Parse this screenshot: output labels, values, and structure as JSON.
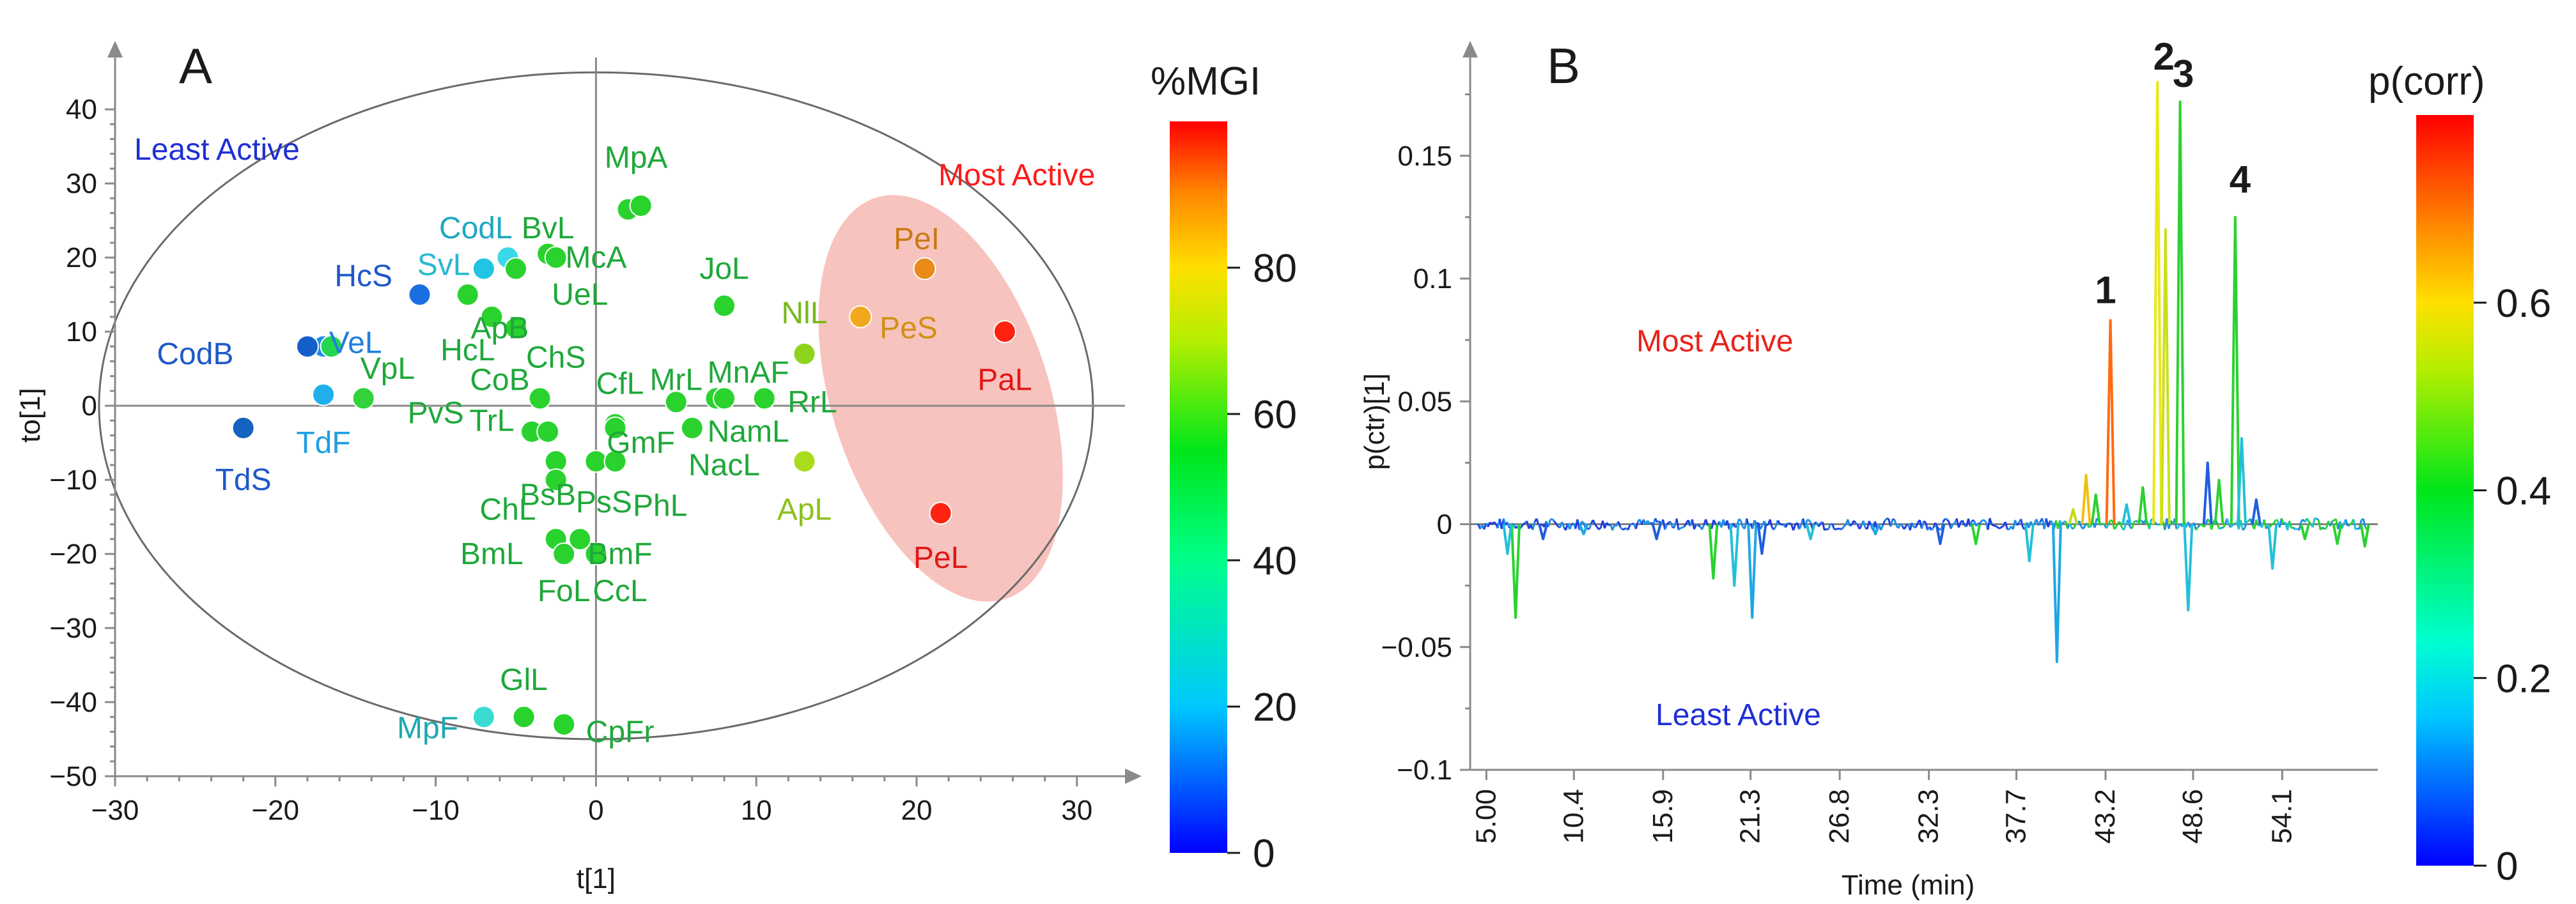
{
  "chart_data": [
    {
      "type": "scatter",
      "panel_label": "A",
      "xlabel": "t[1]",
      "ylabel": "to[1]",
      "xlim": [
        -30,
        33
      ],
      "ylim": [
        -50,
        47
      ],
      "xticks": [
        -30,
        -20,
        -10,
        0,
        10,
        20,
        30
      ],
      "yticks": [
        -50,
        -40,
        -30,
        -20,
        -10,
        0,
        10,
        20,
        30,
        40
      ],
      "xtick_labels": [
        "−30",
        "−20",
        "−10",
        "0",
        "10",
        "20",
        "30"
      ],
      "ytick_labels": [
        "−50",
        "−40",
        "−30",
        "−20",
        "−10",
        "0",
        "10",
        "20",
        "30",
        "40"
      ],
      "annotations": {
        "least_active": "Least Active",
        "most_active": "Most Active"
      },
      "annotation_colors": {
        "least_active": "#1f2fd6",
        "most_active": "#ff1a1a"
      },
      "hotelling_ellipse": {
        "center": [
          0,
          0
        ],
        "rx": 31,
        "ry": 45
      },
      "highlight_region_color": "#f6b8b3",
      "colorbar": {
        "title": "%MGI",
        "min": 0,
        "max": 100,
        "ticks": [
          0,
          20,
          40,
          60,
          80
        ],
        "tick_labels": [
          "0",
          "20",
          "40",
          "60",
          "80"
        ]
      },
      "points": [
        {
          "label": "HcS",
          "x": -11,
          "y": 15,
          "color": "#1a6fe0"
        },
        {
          "label": "VeL",
          "x": -17,
          "y": 8,
          "color": "#1e8ee6"
        },
        {
          "label": "CodB",
          "x": -18,
          "y": 8,
          "color": "#1560c8"
        },
        {
          "label": "VpL",
          "x": -16.5,
          "y": 8,
          "color": "#25d650"
        },
        {
          "label": "TdF",
          "x": -17,
          "y": 1.5,
          "color": "#1fb0ec"
        },
        {
          "label": "TdS",
          "x": -22,
          "y": -3,
          "color": "#1562c0"
        },
        {
          "label": "PvS",
          "x": -14.5,
          "y": 1,
          "color": "#32d23a"
        },
        {
          "label": "CodL",
          "x": -7,
          "y": 18.5,
          "color": "#22c4e4"
        },
        {
          "label": "SvL",
          "x": -5.5,
          "y": 20,
          "color": "#3ad8e8"
        },
        {
          "label": "BvL",
          "x": -3,
          "y": 20.5,
          "color": "#2ad22e"
        },
        {
          "label": "McA",
          "x": -2.5,
          "y": 20,
          "color": "#2ad22e"
        },
        {
          "label": "UeL",
          "x": -5,
          "y": 18.5,
          "color": "#2ad22e"
        },
        {
          "label": "ApB",
          "x": -8,
          "y": 15,
          "color": "#2ad22e"
        },
        {
          "label": "HcL",
          "x": -6.5,
          "y": 12,
          "color": "#2ad22e"
        },
        {
          "label": "ChS",
          "x": -5,
          "y": 10.5,
          "color": "#2ad22e"
        },
        {
          "label": "MpA",
          "x": 2,
          "y": 26.5,
          "color": "#2ad22e"
        },
        {
          "label": "MpA2",
          "x": 2.8,
          "y": 27,
          "color": "#2ad22e"
        },
        {
          "label": "JoL",
          "x": 8,
          "y": 13.5,
          "color": "#2ad22e"
        },
        {
          "label": "NlL",
          "x": 13,
          "y": 7,
          "color": "#8ed41c"
        },
        {
          "label": "PeS",
          "x": 16.5,
          "y": 12,
          "color": "#f2a81c"
        },
        {
          "label": "PeI",
          "x": 20.5,
          "y": 18.5,
          "color": "#ea8a1a"
        },
        {
          "label": "PaL",
          "x": 25.5,
          "y": 10,
          "color": "#ff2210"
        },
        {
          "label": "PeL",
          "x": 21.5,
          "y": -14.5,
          "color": "#ff2210"
        },
        {
          "label": "CoB",
          "x": -3.5,
          "y": 1,
          "color": "#2ad22e"
        },
        {
          "label": "TrL",
          "x": -4,
          "y": -3.5,
          "color": "#2ad22e"
        },
        {
          "label": "TrL2",
          "x": -3,
          "y": -3.5,
          "color": "#2ad22e"
        },
        {
          "label": "CfL",
          "x": 1.2,
          "y": -2.5,
          "color": "#2ad22e"
        },
        {
          "label": "MrL",
          "x": 5,
          "y": 0.5,
          "color": "#2ad22e"
        },
        {
          "label": "MnAF",
          "x": 7.5,
          "y": 1,
          "color": "#2ad22e"
        },
        {
          "label": "MnAF2",
          "x": 8,
          "y": 1,
          "color": "#2ad22e"
        },
        {
          "label": "RrL",
          "x": 10.5,
          "y": 1,
          "color": "#2ad22e"
        },
        {
          "label": "ApL",
          "x": 13,
          "y": -7.5,
          "color": "#aadc1e"
        },
        {
          "label": "GmF",
          "x": 1.2,
          "y": -3,
          "color": "#2ad22e"
        },
        {
          "label": "NamL",
          "x": 6,
          "y": -3,
          "color": "#2ad22e"
        },
        {
          "label": "NacL",
          "x": 6,
          "y": -3,
          "color": "#2ad22e"
        },
        {
          "label": "BsB",
          "x": -2.5,
          "y": -7.5,
          "color": "#2ad22e"
        },
        {
          "label": "PsS",
          "x": 0,
          "y": -7.5,
          "color": "#2ad22e"
        },
        {
          "label": "PhL",
          "x": 1.2,
          "y": -7.5,
          "color": "#2ad22e"
        },
        {
          "label": "ChL",
          "x": -2.5,
          "y": -10,
          "color": "#2ad22e"
        },
        {
          "label": "BmL",
          "x": -2.5,
          "y": -18,
          "color": "#2ad22e"
        },
        {
          "label": "BmF",
          "x": -1,
          "y": -18,
          "color": "#2ad22e"
        },
        {
          "label": "FoL",
          "x": -2,
          "y": -20,
          "color": "#2ad22e"
        },
        {
          "label": "CcL",
          "x": 0,
          "y": -20,
          "color": "#2ad22e"
        },
        {
          "label": "GlL",
          "x": -4.5,
          "y": -42,
          "color": "#2ad22e"
        },
        {
          "label": "CpFr",
          "x": -2,
          "y": -43,
          "color": "#2ad22e"
        },
        {
          "label": "MpF",
          "x": -7,
          "y": -42,
          "color": "#3adcd2"
        }
      ],
      "point_labels": [
        {
          "text": "HcS",
          "x": -14.5,
          "y": 17.5,
          "color": "#1f58c8"
        },
        {
          "text": "VeL",
          "x": -15,
          "y": 8.5,
          "color": "#1f7ee0"
        },
        {
          "text": "CodB",
          "x": -25,
          "y": 7,
          "color": "#1f58c8"
        },
        {
          "text": "VpL",
          "x": -13,
          "y": 5,
          "color": "#1fa83a"
        },
        {
          "text": "TdF",
          "x": -17,
          "y": -5,
          "color": "#1f9ee0"
        },
        {
          "text": "TdS",
          "x": -22,
          "y": -10,
          "color": "#1f58c8"
        },
        {
          "text": "PvS",
          "x": -10,
          "y": -1,
          "color": "#1fa83a"
        },
        {
          "text": "CodL",
          "x": -7.5,
          "y": 24,
          "color": "#1fa8c0"
        },
        {
          "text": "SvL",
          "x": -9.5,
          "y": 19,
          "color": "#2ab8d0"
        },
        {
          "text": "BvL",
          "x": -3,
          "y": 24,
          "color": "#1fa83a"
        },
        {
          "text": "McA",
          "x": 0,
          "y": 20,
          "color": "#1fa83a"
        },
        {
          "text": "UeL",
          "x": -1,
          "y": 15,
          "color": "#1fa83a"
        },
        {
          "text": "ApB",
          "x": -6,
          "y": 10.5,
          "color": "#1fa83a"
        },
        {
          "text": "HcL",
          "x": -8,
          "y": 7.5,
          "color": "#1fa83a"
        },
        {
          "text": "ChS",
          "x": -2.5,
          "y": 6.5,
          "color": "#1fa83a"
        },
        {
          "text": "MpA",
          "x": 2.5,
          "y": 33.5,
          "color": "#1fa83a"
        },
        {
          "text": "JoL",
          "x": 8,
          "y": 18.5,
          "color": "#1fa83a"
        },
        {
          "text": "NlL",
          "x": 13,
          "y": 12.5,
          "color": "#7ab81c"
        },
        {
          "text": "PeS",
          "x": 19.5,
          "y": 10.5,
          "color": "#d09015"
        },
        {
          "text": "PeI",
          "x": 20,
          "y": 22.5,
          "color": "#c87a15"
        },
        {
          "text": "PaL",
          "x": 25.5,
          "y": 3.5,
          "color": "#e01818"
        },
        {
          "text": "PeL",
          "x": 21.5,
          "y": -20.5,
          "color": "#e01818"
        },
        {
          "text": "CoB",
          "x": -6,
          "y": 3.5,
          "color": "#1fa83a"
        },
        {
          "text": "TrL",
          "x": -6.5,
          "y": -2,
          "color": "#1fa83a"
        },
        {
          "text": "CfL",
          "x": 1.5,
          "y": 3,
          "color": "#1fa83a"
        },
        {
          "text": "MrL",
          "x": 5,
          "y": 3.5,
          "color": "#1fa83a"
        },
        {
          "text": "MnAF",
          "x": 9.5,
          "y": 4.5,
          "color": "#1fa83a"
        },
        {
          "text": "RrL",
          "x": 13.5,
          "y": 0.5,
          "color": "#1fa83a"
        },
        {
          "text": "ApL",
          "x": 13,
          "y": -14,
          "color": "#8ec01c"
        },
        {
          "text": "GmF",
          "x": 2.8,
          "y": -5,
          "color": "#1fa83a"
        },
        {
          "text": "NamL",
          "x": 9.5,
          "y": -3.5,
          "color": "#1fa83a"
        },
        {
          "text": "NacL",
          "x": 8,
          "y": -8,
          "color": "#1fa83a"
        },
        {
          "text": "BsB",
          "x": -3,
          "y": -12,
          "color": "#1fa83a"
        },
        {
          "text": "PsS",
          "x": 0.5,
          "y": -13,
          "color": "#1fa83a"
        },
        {
          "text": "PhL",
          "x": 4,
          "y": -13.5,
          "color": "#1fa83a"
        },
        {
          "text": "ChL",
          "x": -5.5,
          "y": -14,
          "color": "#1fa83a"
        },
        {
          "text": "BmL",
          "x": -6.5,
          "y": -20,
          "color": "#1fa83a"
        },
        {
          "text": "BmF",
          "x": 1.5,
          "y": -20,
          "color": "#1fa83a"
        },
        {
          "text": "FoL",
          "x": -2,
          "y": -25,
          "color": "#1fa83a"
        },
        {
          "text": "CcL",
          "x": 1.5,
          "y": -25,
          "color": "#1fa83a"
        },
        {
          "text": "GlL",
          "x": -4.5,
          "y": -37,
          "color": "#1fa83a"
        },
        {
          "text": "CpFr",
          "x": 1.5,
          "y": -44,
          "color": "#1fa83a"
        },
        {
          "text": "MpF",
          "x": -10.5,
          "y": -43.5,
          "color": "#1fa8b0"
        }
      ]
    },
    {
      "type": "line",
      "panel_label": "B",
      "xlabel": "Time (min)",
      "ylabel": "p(ctr)[1]",
      "xlim": [
        4,
        60
      ],
      "ylim": [
        -0.1,
        0.19
      ],
      "xtick_labels": [
        "5.00",
        "10.4",
        "15.9",
        "21.3",
        "26.8",
        "32.3",
        "37.7",
        "43.2",
        "48.6",
        "54.1"
      ],
      "xticks": [
        5.0,
        10.4,
        15.9,
        21.3,
        26.8,
        32.3,
        37.7,
        43.2,
        48.6,
        54.1
      ],
      "yticks": [
        -0.1,
        -0.05,
        0,
        0.05,
        0.1,
        0.15
      ],
      "ytick_labels": [
        "−0.1",
        "−0.05",
        "0",
        "0.05",
        "0.1",
        "0.15"
      ],
      "annotations": {
        "most_active": "Most Active",
        "least_active": "Least Active"
      },
      "annotation_colors": {
        "most_active": "#e8231a",
        "least_active": "#1f2fd6"
      },
      "peak_labels": [
        {
          "text": "1",
          "x": 43.2,
          "y": 0.09
        },
        {
          "text": "2",
          "x": 46.8,
          "y": 0.185
        },
        {
          "text": "3",
          "x": 48.0,
          "y": 0.178
        },
        {
          "text": "4",
          "x": 51.5,
          "y": 0.135
        }
      ],
      "colorbar": {
        "title": "p(corr)",
        "min": 0,
        "max": 0.8,
        "ticks": [
          0,
          0.2,
          0.4,
          0.6
        ],
        "tick_labels": [
          "0",
          "0.2",
          "0.4",
          "0.6"
        ]
      },
      "peaks": [
        {
          "x": 6.8,
          "y": -0.038,
          "color": "#2ad22e"
        },
        {
          "x": 6.3,
          "y": -0.012,
          "color": "#23c0d8"
        },
        {
          "x": 8.5,
          "y": -0.006,
          "color": "#1f5ee0"
        },
        {
          "x": 11.0,
          "y": -0.004,
          "color": "#1ea6e6"
        },
        {
          "x": 15.5,
          "y": -0.006,
          "color": "#1f5ee0"
        },
        {
          "x": 19.0,
          "y": -0.022,
          "color": "#2ad22e"
        },
        {
          "x": 20.3,
          "y": -0.025,
          "color": "#23c0d8"
        },
        {
          "x": 21.4,
          "y": -0.038,
          "color": "#1ea6e6"
        },
        {
          "x": 22.0,
          "y": -0.012,
          "color": "#1f5ee0"
        },
        {
          "x": 25.0,
          "y": -0.006,
          "color": "#23c0d8"
        },
        {
          "x": 29.0,
          "y": -0.004,
          "color": "#1ea6e6"
        },
        {
          "x": 33.0,
          "y": -0.008,
          "color": "#1f5ee0"
        },
        {
          "x": 35.2,
          "y": -0.008,
          "color": "#2ad22e"
        },
        {
          "x": 38.5,
          "y": -0.015,
          "color": "#23c0d8"
        },
        {
          "x": 40.2,
          "y": -0.056,
          "color": "#1ea6e6"
        },
        {
          "x": 41.2,
          "y": 0.006,
          "color": "#c8d81a"
        },
        {
          "x": 42.0,
          "y": 0.02,
          "color": "#f0c010"
        },
        {
          "x": 42.6,
          "y": 0.012,
          "color": "#2ad22e"
        },
        {
          "x": 43.5,
          "y": 0.083,
          "color": "#ff6a10"
        },
        {
          "x": 44.5,
          "y": 0.008,
          "color": "#23c0d8"
        },
        {
          "x": 45.5,
          "y": 0.015,
          "color": "#2ad22e"
        },
        {
          "x": 46.4,
          "y": 0.18,
          "color": "#e8e818"
        },
        {
          "x": 46.9,
          "y": 0.12,
          "color": "#c8e01a"
        },
        {
          "x": 47.8,
          "y": 0.172,
          "color": "#2ad22e"
        },
        {
          "x": 48.3,
          "y": -0.035,
          "color": "#23c0d8"
        },
        {
          "x": 49.5,
          "y": 0.025,
          "color": "#1f5ee0"
        },
        {
          "x": 50.2,
          "y": 0.018,
          "color": "#2ad22e"
        },
        {
          "x": 51.2,
          "y": 0.125,
          "color": "#2ad22e"
        },
        {
          "x": 51.6,
          "y": 0.035,
          "color": "#23c0d8"
        },
        {
          "x": 52.5,
          "y": 0.01,
          "color": "#1f5ee0"
        },
        {
          "x": 53.5,
          "y": -0.018,
          "color": "#23c0d8"
        },
        {
          "x": 55.5,
          "y": -0.006,
          "color": "#2ad22e"
        },
        {
          "x": 57.5,
          "y": -0.008,
          "color": "#2ad22e"
        },
        {
          "x": 59.2,
          "y": -0.009,
          "color": "#2ad22e"
        }
      ]
    }
  ]
}
